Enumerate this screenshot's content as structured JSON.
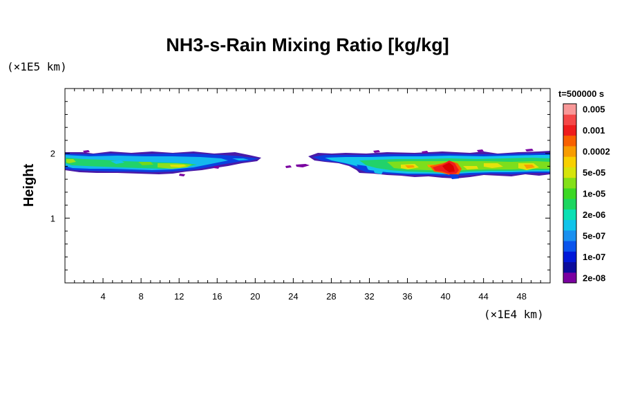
{
  "chart_data": {
    "type": "heatmap",
    "title": "NH3-s-Rain Mixing Ratio [kg/kg]",
    "xlabel": "",
    "x_unit": "(×1E4 km)",
    "ylabel": "Height",
    "y_unit": "(×1E5 km)",
    "xlim": [
      0,
      51
    ],
    "ylim": [
      0,
      3
    ],
    "x_ticks": [
      4,
      8,
      12,
      16,
      20,
      24,
      28,
      32,
      36,
      40,
      44,
      48
    ],
    "y_ticks": [
      1,
      2
    ],
    "time_label": "t=500000 s",
    "colorbar": {
      "labels": [
        "2e-08",
        "1e-07",
        "5e-07",
        "2e-06",
        "1e-05",
        "5e-05",
        "0.0002",
        "0.001",
        "0.005"
      ],
      "colors": [
        "#7a00a0",
        "#0c0c9c",
        "#0018d8",
        "#0a54ec",
        "#1a90f0",
        "#10c4ea",
        "#0ae0b4",
        "#1cd660",
        "#3cd824",
        "#84e018",
        "#d6e40c",
        "#f8d000",
        "#f89c00",
        "#f86000",
        "#ee1c1c",
        "#f44848",
        "#f89898"
      ]
    },
    "regions": [
      {
        "name": "left cloud band",
        "x_range": [
          0,
          20.5
        ],
        "height_range": [
          1.72,
          2.0
        ],
        "peak_value": "5e-05"
      },
      {
        "name": "small fragment",
        "x_range": [
          22.5,
          25
        ],
        "height_range": [
          1.78,
          1.82
        ],
        "peak_value": "2e-08"
      },
      {
        "name": "right cloud band",
        "x_range": [
          25.5,
          51
        ],
        "height_range": [
          1.62,
          2.0
        ],
        "peak_value": "0.001"
      }
    ]
  }
}
